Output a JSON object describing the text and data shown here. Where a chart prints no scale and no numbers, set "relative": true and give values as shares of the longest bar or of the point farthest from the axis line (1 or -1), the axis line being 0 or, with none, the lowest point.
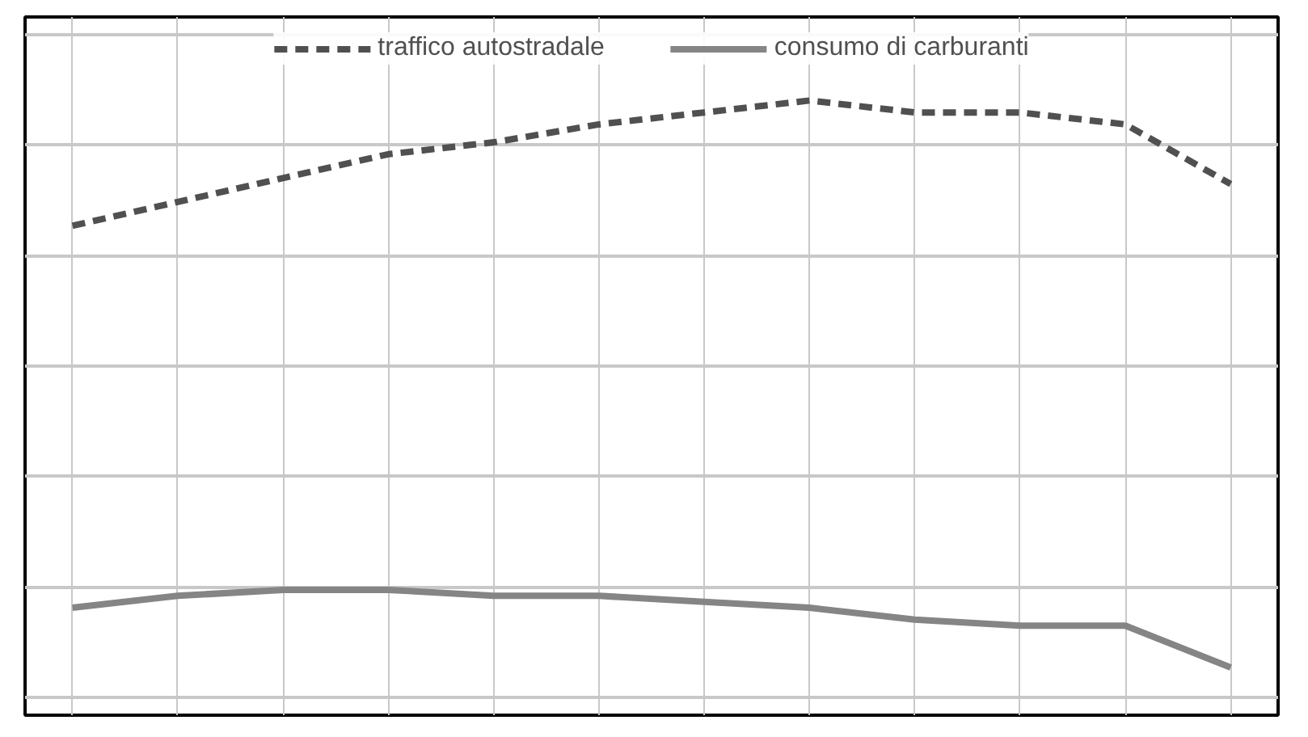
{
  "chart_data": {
    "type": "line",
    "relative": true,
    "categories": [
      null,
      null,
      null,
      null,
      null,
      null,
      null,
      null,
      null,
      null,
      null,
      null
    ],
    "series": [
      {
        "name": "traffico autostradale",
        "color": "#505050",
        "line_style": "dashed",
        "values": [
          0.79,
          0.83,
          0.87,
          0.91,
          0.93,
          0.96,
          0.98,
          1,
          0.98,
          0.98,
          0.96,
          0.86
        ]
      },
      {
        "name": "consumo di carburanti",
        "color": "#858585",
        "line_style": "solid",
        "values": [
          0.15,
          0.17,
          0.18,
          0.18,
          0.17,
          0.17,
          0.16,
          0.15,
          0.13,
          0.12,
          0.12,
          0.05
        ]
      }
    ],
    "grid": true,
    "legend": "top"
  }
}
